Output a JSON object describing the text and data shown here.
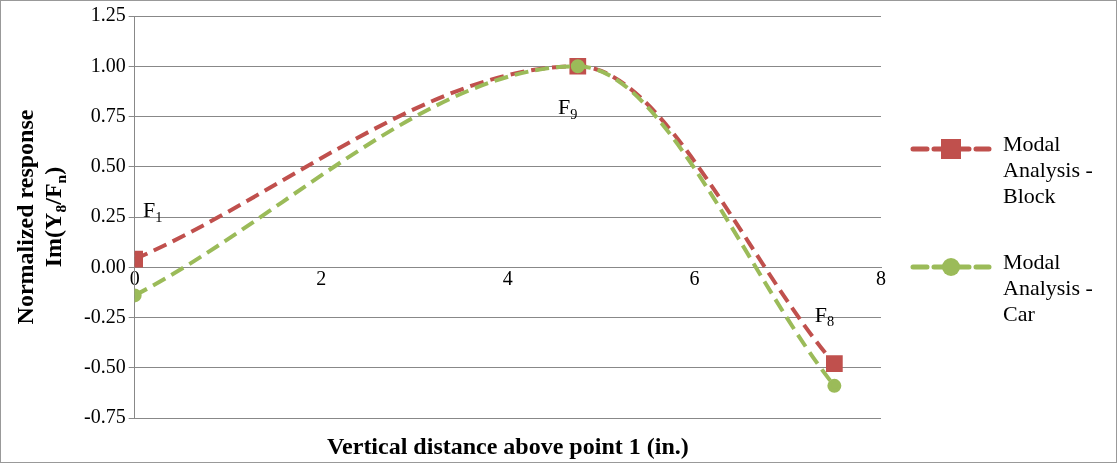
{
  "chart_data": {
    "type": "line",
    "xlabel": "Vertical distance above point 1 (in.)",
    "ylabel": "Normalized response\nIm(Y$_{8}$/F$_{n}$)",
    "xlim": [
      0,
      8
    ],
    "xticks": [
      0,
      2,
      4,
      6,
      8
    ],
    "ylim": [
      -0.75,
      1.25
    ],
    "yticks": [
      {
        "value": -0.75,
        "label": "-0.75"
      },
      {
        "value": -0.5,
        "label": "-0.50"
      },
      {
        "value": -0.25,
        "label": "-0.25"
      },
      {
        "value": 0,
        "label": "0.00"
      },
      {
        "value": 0.25,
        "label": "0.25"
      },
      {
        "value": 0.5,
        "label": "0.50"
      },
      {
        "value": 0.75,
        "label": "0.75"
      },
      {
        "value": 1,
        "label": "1.00"
      },
      {
        "value": 1.25,
        "label": "1.25"
      }
    ],
    "grid": "y",
    "legend": "right",
    "series": [
      {
        "name": "Modal Analysis - Block",
        "color": "#c0504d",
        "x": [
          0,
          4.75,
          7.5
        ],
        "values": [
          0.04,
          1.0,
          -0.48
        ],
        "marker": "square",
        "line_style": "dashed"
      },
      {
        "name": "Modal Analysis - Car",
        "color": "#9bbb59",
        "x": [
          0,
          4.75,
          7.5
        ],
        "values": [
          -0.14,
          1.0,
          -0.59
        ],
        "marker": "circle",
        "line_style": "dashed"
      }
    ],
    "annotations": [
      {
        "text": "F$_{1}$",
        "x": 0,
        "y": 0.04
      },
      {
        "text": "F$_{9}$",
        "x": 4.75,
        "y": 1.0
      },
      {
        "text": "F$_{8}$",
        "x": 7.5,
        "y": -0.48
      }
    ]
  }
}
